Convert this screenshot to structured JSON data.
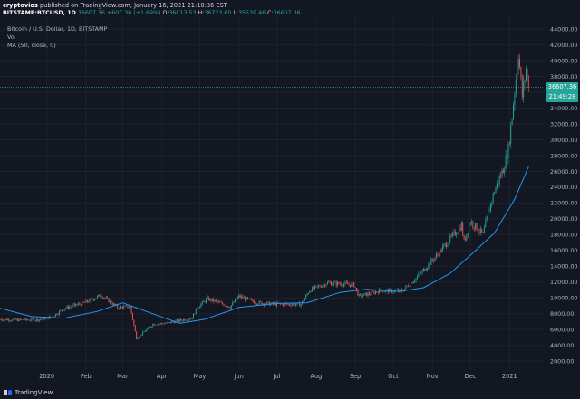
{
  "header": {
    "author": "cryptovios",
    "published": "published on TradingView.com, January 16, 2021 21:10:36 EST",
    "symbol": "BITSTAMP:BTCUSD, 1D",
    "last": "36607.36",
    "change": "+607.36 (+1.69%)",
    "o_label": "O:",
    "o": "36013.53",
    "h_label": "H:",
    "h": "36723.60",
    "l_label": "L:",
    "l": "35539.46",
    "c_label": "C:",
    "c": "36607.36"
  },
  "legend": {
    "title": "Bitcoin / U.S. Dollar, 1D, BITSTAMP",
    "vol": "Vol",
    "ma": "MA (50, close, 0)"
  },
  "price_tag": {
    "value": "36607.36",
    "countdown": "21:49:28"
  },
  "footer": {
    "brand": "TradingView"
  },
  "colors": {
    "background": "#131722",
    "up": "#26a69a",
    "down": "#ef5350",
    "ma": "#2196f3",
    "grid": "#1e222d"
  },
  "chart_data": {
    "type": "candlestick",
    "title": "Bitcoin / U.S. Dollar, 1D, BITSTAMP",
    "y_axis_labels": [
      "44000.00",
      "42000.00",
      "40000.00",
      "38000.00",
      "36000.00",
      "34000.00",
      "32000.00",
      "30000.00",
      "28000.00",
      "26000.00",
      "24000.00",
      "22000.00",
      "20000.00",
      "18000.00",
      "16000.00",
      "14000.00",
      "12000.00",
      "10000.00",
      "8000.00",
      "6000.00",
      "4000.00",
      "2000.00"
    ],
    "y_tick_values": [
      44000,
      42000,
      40000,
      38000,
      36000,
      34000,
      32000,
      30000,
      28000,
      26000,
      24000,
      22000,
      20000,
      18000,
      16000,
      14000,
      12000,
      10000,
      8000,
      6000,
      4000,
      2000
    ],
    "ylim": [
      1000,
      45500
    ],
    "x_axis_labels": [
      "2020",
      "Feb",
      "Mar",
      "Apr",
      "May",
      "Jun",
      "Jul",
      "Aug",
      "Sep",
      "Oct",
      "Nov",
      "Dec",
      "2021"
    ],
    "x_tick_dates": [
      "2020-01-01",
      "2020-02-01",
      "2020-03-01",
      "2020-04-01",
      "2020-05-01",
      "2020-06-01",
      "2020-07-01",
      "2020-08-01",
      "2020-09-01",
      "2020-10-01",
      "2020-11-01",
      "2020-12-01",
      "2021-01-01"
    ],
    "xlim": [
      "2019-11-25",
      "2021-01-28"
    ],
    "grid": true,
    "price_keypoints": [
      {
        "date": "2019-11-25",
        "close": 7300
      },
      {
        "date": "2019-12-10",
        "close": 7200
      },
      {
        "date": "2019-12-25",
        "close": 7250
      },
      {
        "date": "2020-01-05",
        "close": 7600
      },
      {
        "date": "2020-01-15",
        "close": 8700
      },
      {
        "date": "2020-01-31",
        "close": 9400
      },
      {
        "date": "2020-02-13",
        "close": 10350
      },
      {
        "date": "2020-02-26",
        "close": 8800
      },
      {
        "date": "2020-03-07",
        "close": 8900
      },
      {
        "date": "2020-03-12",
        "close": 4900
      },
      {
        "date": "2020-03-15",
        "close": 5300
      },
      {
        "date": "2020-03-25",
        "close": 6700
      },
      {
        "date": "2020-04-05",
        "close": 6800
      },
      {
        "date": "2020-04-25",
        "close": 7500
      },
      {
        "date": "2020-04-29",
        "close": 8800
      },
      {
        "date": "2020-05-07",
        "close": 9900
      },
      {
        "date": "2020-05-25",
        "close": 8900
      },
      {
        "date": "2020-06-01",
        "close": 10200
      },
      {
        "date": "2020-06-15",
        "close": 9400
      },
      {
        "date": "2020-07-01",
        "close": 9200
      },
      {
        "date": "2020-07-20",
        "close": 9200
      },
      {
        "date": "2020-07-27",
        "close": 11000
      },
      {
        "date": "2020-08-10",
        "close": 11900
      },
      {
        "date": "2020-08-31",
        "close": 11650
      },
      {
        "date": "2020-09-04",
        "close": 10200
      },
      {
        "date": "2020-09-20",
        "close": 10900
      },
      {
        "date": "2020-10-08",
        "close": 10900
      },
      {
        "date": "2020-10-21",
        "close": 12800
      },
      {
        "date": "2020-11-05",
        "close": 15500
      },
      {
        "date": "2020-11-24",
        "close": 19200
      },
      {
        "date": "2020-11-26",
        "close": 17100
      },
      {
        "date": "2020-12-01",
        "close": 19700
      },
      {
        "date": "2020-12-11",
        "close": 18000
      },
      {
        "date": "2020-12-16",
        "close": 21300
      },
      {
        "date": "2020-12-20",
        "close": 23500
      },
      {
        "date": "2020-12-27",
        "close": 26300
      },
      {
        "date": "2020-12-31",
        "close": 28900
      },
      {
        "date": "2021-01-03",
        "close": 33000
      },
      {
        "date": "2021-01-08",
        "close": 41000
      },
      {
        "date": "2021-01-11",
        "close": 35500
      },
      {
        "date": "2021-01-14",
        "close": 39000
      },
      {
        "date": "2021-01-16",
        "close": 36607.36
      }
    ],
    "series": [
      {
        "name": "MA (50, close, 0)",
        "type": "line",
        "points": [
          {
            "date": "2019-11-25",
            "value": 8700
          },
          {
            "date": "2019-12-20",
            "value": 7650
          },
          {
            "date": "2020-01-15",
            "value": 7450
          },
          {
            "date": "2020-02-10",
            "value": 8300
          },
          {
            "date": "2020-03-01",
            "value": 9400
          },
          {
            "date": "2020-03-25",
            "value": 8000
          },
          {
            "date": "2020-04-15",
            "value": 6800
          },
          {
            "date": "2020-05-05",
            "value": 7300
          },
          {
            "date": "2020-06-01",
            "value": 8800
          },
          {
            "date": "2020-07-01",
            "value": 9300
          },
          {
            "date": "2020-07-25",
            "value": 9400
          },
          {
            "date": "2020-08-20",
            "value": 10700
          },
          {
            "date": "2020-09-10",
            "value": 11100
          },
          {
            "date": "2020-10-05",
            "value": 10800
          },
          {
            "date": "2020-10-25",
            "value": 11300
          },
          {
            "date": "2020-11-15",
            "value": 13100
          },
          {
            "date": "2020-12-01",
            "value": 15400
          },
          {
            "date": "2020-12-20",
            "value": 18200
          },
          {
            "date": "2021-01-05",
            "value": 22500
          },
          {
            "date": "2021-01-16",
            "value": 26600
          }
        ]
      }
    ]
  }
}
